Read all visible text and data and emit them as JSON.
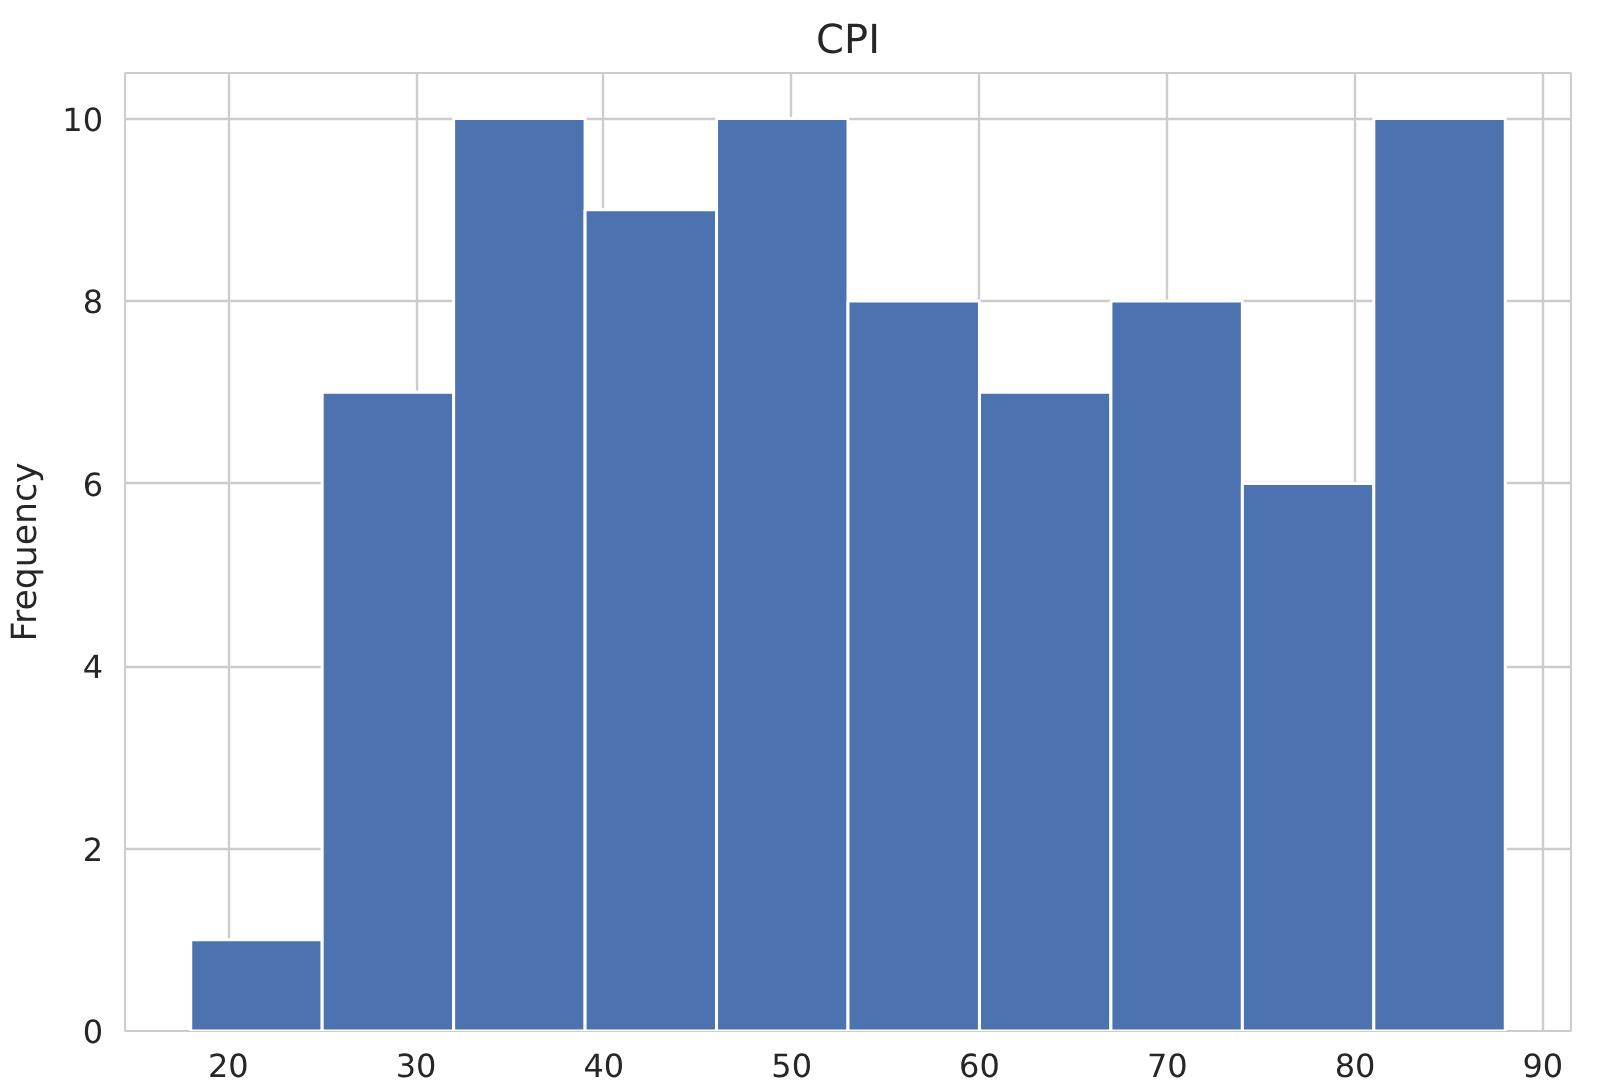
{
  "chart_data": {
    "type": "histogram",
    "title": "CPI",
    "ylabel": "Frequency",
    "bins": [
      18,
      25,
      32,
      39,
      46,
      53,
      60,
      67,
      74,
      81,
      88
    ],
    "values": [
      1,
      7,
      10,
      9,
      10,
      8,
      7,
      8,
      6,
      10
    ],
    "color": "#4c72b0",
    "xlim": [
      14.5,
      91.5
    ],
    "ylim": [
      0,
      10.5
    ],
    "xticks": [
      20,
      30,
      40,
      50,
      60,
      70,
      80,
      90
    ],
    "yticks": [
      0,
      2,
      4,
      6,
      8,
      10
    ],
    "grid": true
  }
}
